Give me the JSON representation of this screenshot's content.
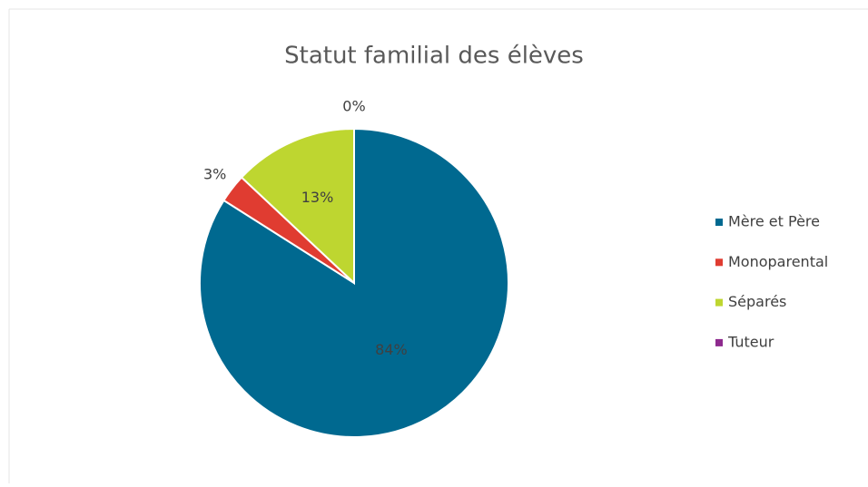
{
  "chart_data": {
    "type": "pie",
    "title": "Statut familial des élèves",
    "categories": [
      "Mère et Père",
      "Monoparental",
      "Séparés",
      "Tuteur"
    ],
    "values": [
      84,
      3,
      13,
      0
    ],
    "value_labels": [
      "84%",
      "3%",
      "13%",
      "0%"
    ],
    "colors": [
      "#006990",
      "#e03c31",
      "#bed630",
      "#8e2a8e"
    ],
    "legend": "right"
  }
}
